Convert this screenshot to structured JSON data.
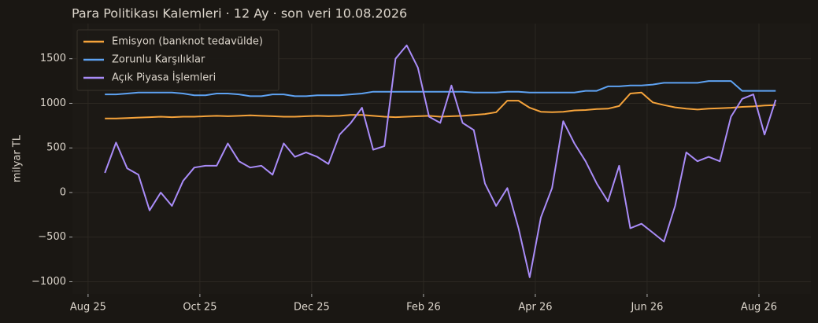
{
  "chart_data": {
    "type": "line",
    "title": "Para Politikası Kalemleri · 12 Ay · son veri 10.08.2026",
    "y_label": "milyar TL",
    "x": [
      0.3,
      0.5,
      0.7,
      0.9,
      1.1,
      1.3,
      1.5,
      1.7,
      1.9,
      2.1,
      2.3,
      2.5,
      2.7,
      2.9,
      3.1,
      3.3,
      3.5,
      3.7,
      3.9,
      4.1,
      4.3,
      4.5,
      4.7,
      4.9,
      5.1,
      5.3,
      5.5,
      5.7,
      5.9,
      6.1,
      6.3,
      6.5,
      6.7,
      6.9,
      7.1,
      7.3,
      7.5,
      7.7,
      7.9,
      8.1,
      8.3,
      8.5,
      8.7,
      8.9,
      9.1,
      9.3,
      9.5,
      9.7,
      9.9,
      10.1,
      10.3,
      10.5,
      10.7,
      10.9,
      11.1,
      11.3,
      11.5,
      11.7,
      11.9,
      12.1,
      12.3
    ],
    "xlim": [
      -0.28,
      12.93
    ],
    "xticks": [
      {
        "value": 0,
        "label": "Aug 25"
      },
      {
        "value": 2,
        "label": "Oct 25"
      },
      {
        "value": 4,
        "label": "Dec 25"
      },
      {
        "value": 6,
        "label": "Feb 26"
      },
      {
        "value": 8,
        "label": "Apr 26"
      },
      {
        "value": 10,
        "label": "Jun 26"
      },
      {
        "value": 12,
        "label": "Aug 26"
      }
    ],
    "ylim": [
      -1137,
      1894
    ],
    "yticks": [
      {
        "value": -1000,
        "label": "−1000"
      },
      {
        "value": -500,
        "label": "−500"
      },
      0,
      500,
      1000,
      1500
    ],
    "grid": true,
    "legend": "upper left",
    "series": [
      {
        "name": "Emisyon (banknot tedavülde)",
        "color": "#f5a33b",
        "values": [
          830,
          830,
          835,
          840,
          845,
          850,
          845,
          850,
          850,
          855,
          860,
          855,
          860,
          865,
          860,
          855,
          850,
          850,
          855,
          860,
          855,
          860,
          870,
          870,
          860,
          850,
          845,
          850,
          855,
          860,
          850,
          855,
          860,
          870,
          880,
          900,
          1030,
          1030,
          950,
          905,
          900,
          905,
          920,
          925,
          935,
          940,
          970,
          1110,
          1120,
          1010,
          980,
          955,
          940,
          930,
          940,
          945,
          950,
          960,
          965,
          975,
          980
        ]
      },
      {
        "name": "Zorunlu Karşılıklar",
        "color": "#5ea2f2",
        "values": [
          1100,
          1100,
          1110,
          1120,
          1120,
          1120,
          1120,
          1110,
          1090,
          1090,
          1110,
          1110,
          1100,
          1080,
          1080,
          1100,
          1100,
          1080,
          1080,
          1090,
          1090,
          1090,
          1100,
          1110,
          1130,
          1130,
          1130,
          1130,
          1130,
          1130,
          1130,
          1130,
          1130,
          1120,
          1120,
          1120,
          1130,
          1130,
          1120,
          1120,
          1120,
          1120,
          1120,
          1140,
          1140,
          1190,
          1190,
          1200,
          1200,
          1210,
          1230,
          1230,
          1230,
          1230,
          1250,
          1250,
          1250,
          1140,
          1140,
          1140,
          1140
        ]
      },
      {
        "name": "Açık Piyasa İşlemleri",
        "color": "#a98cf8",
        "values": [
          220,
          560,
          270,
          200,
          -200,
          0,
          -150,
          130,
          280,
          300,
          300,
          550,
          350,
          280,
          300,
          200,
          550,
          400,
          450,
          400,
          320,
          650,
          780,
          950,
          480,
          520,
          1500,
          1650,
          1400,
          850,
          780,
          1200,
          780,
          700,
          100,
          -150,
          50,
          -400,
          -950,
          -280,
          50,
          800,
          550,
          350,
          100,
          -100,
          300,
          -400,
          -350,
          -450,
          -550,
          -150,
          450,
          350,
          400,
          350,
          850,
          1050,
          1100,
          650,
          1040
        ]
      }
    ]
  }
}
